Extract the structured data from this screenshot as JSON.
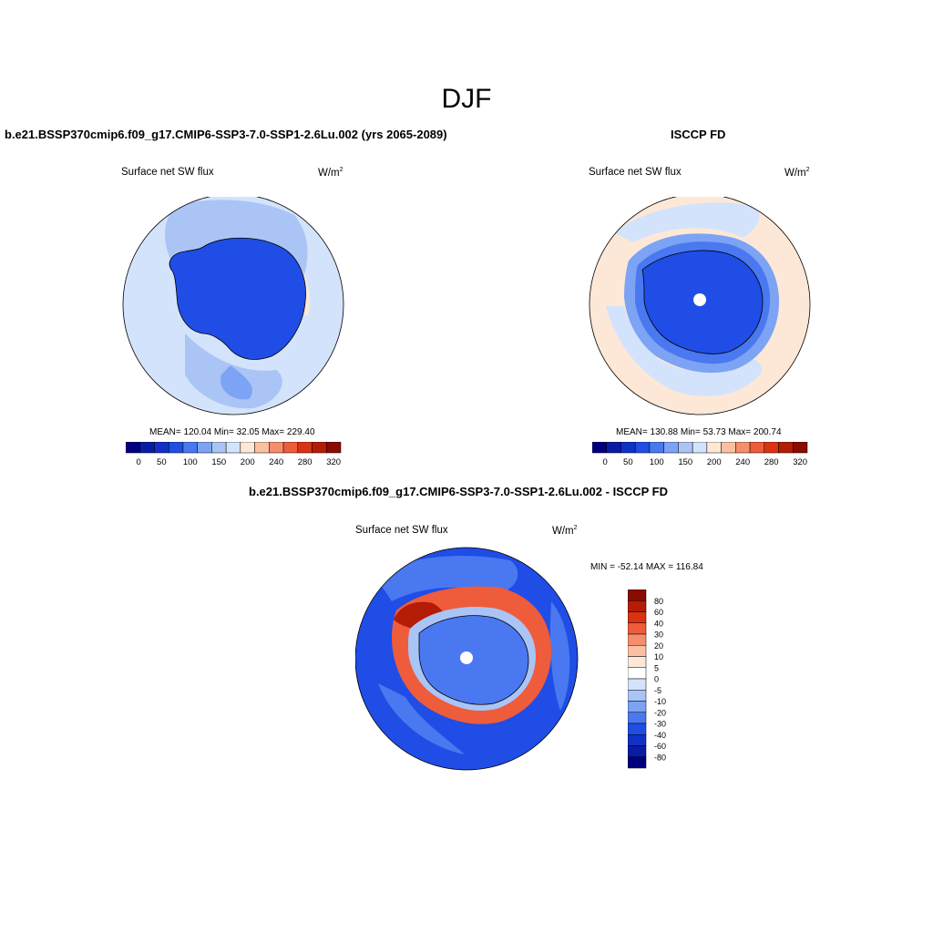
{
  "page": {
    "season": "DJF",
    "panel1_title": "b.e21.BSSP370cmip6.f09_g17.CMIP6-SSP3-7.0-SSP1-2.6Lu.002 (yrs 2065-2089)",
    "panel2_title": "ISCCP FD",
    "diff_title": "b.e21.BSSP370cmip6.f09_g17.CMIP6-SSP3-7.0-SSP1-2.6Lu.002 - ISCCP FD"
  },
  "chart_data": [
    {
      "type": "heatmap",
      "projection": "south-polar-stereographic",
      "left_label": "Surface net SW flux",
      "units_base": "W/m",
      "units_sup": "2",
      "stats": {
        "mean": "120.04",
        "min": "32.05",
        "max": "229.40"
      },
      "stats_text": "MEAN= 120.04  Min=  32.05  Max= 229.40",
      "colorbar": {
        "orientation": "horizontal",
        "tick_labels": [
          "0",
          "50",
          "100",
          "150",
          "200",
          "240",
          "280",
          "320"
        ],
        "colors": [
          "#00007f",
          "#0a1ba6",
          "#1131c6",
          "#1f4de6",
          "#4a78f0",
          "#7ca3f4",
          "#aac4f6",
          "#d3e3fb",
          "#fde8d8",
          "#fbbfa2",
          "#f68e6b",
          "#ee5c3b",
          "#dc3212",
          "#b41c05",
          "#8a0b00"
        ]
      }
    },
    {
      "type": "heatmap",
      "projection": "south-polar-stereographic",
      "left_label": "Surface net SW flux",
      "units_base": "W/m",
      "units_sup": "2",
      "stats": {
        "mean": "130.88",
        "min": "53.73",
        "max": "200.74"
      },
      "stats_text": "MEAN= 130.88  Min=  53.73  Max= 200.74",
      "colorbar": {
        "orientation": "horizontal",
        "tick_labels": [
          "0",
          "50",
          "100",
          "150",
          "200",
          "240",
          "280",
          "320"
        ],
        "colors": [
          "#00007f",
          "#0a1ba6",
          "#1131c6",
          "#1f4de6",
          "#4a78f0",
          "#7ca3f4",
          "#aac4f6",
          "#d3e3fb",
          "#fde8d8",
          "#fbbfa2",
          "#f68e6b",
          "#ee5c3b",
          "#dc3212",
          "#b41c05",
          "#8a0b00"
        ]
      }
    },
    {
      "type": "heatmap",
      "projection": "south-polar-stereographic",
      "left_label": "Surface net SW flux",
      "units_base": "W/m",
      "units_sup": "2",
      "stats": {
        "min": "-52.14",
        "max": "116.84"
      },
      "stats_text": "MIN = -52.14 MAX = 116.84",
      "colorbar": {
        "orientation": "vertical",
        "tick_labels": [
          "80",
          "60",
          "40",
          "30",
          "20",
          "10",
          "5",
          "0",
          "-5",
          "-10",
          "-20",
          "-30",
          "-40",
          "-60",
          "-80"
        ],
        "colors": [
          "#8a0b00",
          "#b41c05",
          "#dc3212",
          "#ee5c3b",
          "#f68e6b",
          "#fbbfa2",
          "#fde8d8",
          "#ffffff",
          "#d3e3fb",
          "#aac4f6",
          "#7ca3f4",
          "#4a78f0",
          "#1f4de6",
          "#1131c6",
          "#0a1ba6",
          "#00007f"
        ]
      }
    }
  ]
}
